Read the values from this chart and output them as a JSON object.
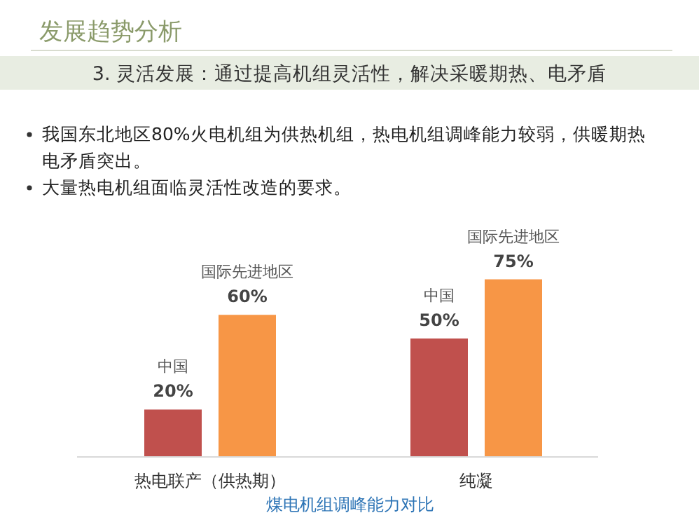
{
  "chart_data": {
    "type": "bar",
    "title": "煤电机组调峰能力对比",
    "subtitle": "3. 灵活发展：通过提高机组灵活性，解决采暖期热、电矛盾",
    "annotations": [
      "发展趋势分析",
      "我国东北地区80%火电机组为供热机组，热电机组调峰能力较弱，供暖期热电矛盾突出。",
      "大量热电机组面临灵活性改造的要求。"
    ],
    "categories": [
      "热电联产（供热期）",
      "纯凝"
    ],
    "series": [
      {
        "name": "中国",
        "color": "#c0504d",
        "values": [
          20,
          50
        ],
        "value_labels": [
          "20%",
          "50%"
        ]
      },
      {
        "name": "国际先进地区",
        "color": "#f79646",
        "values": [
          60,
          75
        ],
        "value_labels": [
          "60%",
          "75%"
        ]
      }
    ]
  }
}
